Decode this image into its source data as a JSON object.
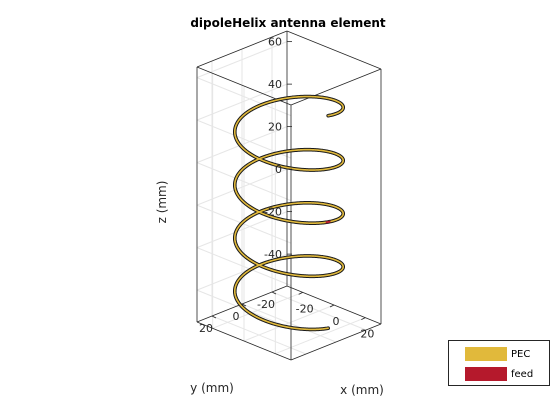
{
  "chart_data": {
    "type": "line",
    "title": "dipoleHelix antenna element",
    "xlabel": "x (mm)",
    "ylabel": "y (mm)",
    "zlabel": "z (mm)",
    "xlim": [
      -30,
      30
    ],
    "ylim": [
      -30,
      30
    ],
    "zlim": [
      -55,
      65
    ],
    "xticks": [
      -20,
      0,
      20
    ],
    "yticks": [
      -20,
      0,
      20
    ],
    "zticks": [
      -40,
      -20,
      0,
      20,
      40,
      60
    ],
    "grid": true,
    "helix": {
      "radius_mm": 25,
      "turns": 4,
      "z_start_mm": -50,
      "z_end_mm": 50
    },
    "series": [
      {
        "name": "PEC",
        "color": "#e1b93b"
      },
      {
        "name": "feed",
        "color": "#b5192c"
      }
    ],
    "legend_position": "bottom-right"
  }
}
